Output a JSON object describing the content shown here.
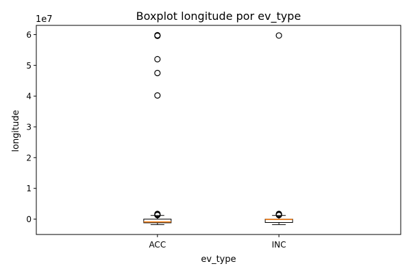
{
  "chart_data": {
    "type": "box",
    "title": "Boxplot longitude por ev_type",
    "xlabel": "ev_type",
    "ylabel": "longitude",
    "y_scale_label": "1e7",
    "categories": [
      "ACC",
      "INC"
    ],
    "ylim": [
      -5000000,
      63000000
    ],
    "yticks": [
      0,
      10000000,
      20000000,
      30000000,
      40000000,
      50000000,
      60000000
    ],
    "ytick_labels": [
      "0",
      "1",
      "2",
      "3",
      "4",
      "5",
      "6"
    ],
    "grid": false,
    "colors": {
      "median": "#ff7f0e",
      "box": "#000000",
      "flier": "#000000"
    },
    "boxes": [
      {
        "category": "ACC",
        "whisker_low": -1800000,
        "q1": -1200000,
        "median": -900000,
        "q3": 0,
        "whisker_high": 1200000,
        "fliers": [
          1300000,
          1500000,
          1700000,
          40200000,
          47500000,
          52000000,
          59600000,
          59800000
        ]
      },
      {
        "category": "INC",
        "whisker_low": -1800000,
        "q1": -1100000,
        "median": -100000,
        "q3": 0,
        "whisker_high": 1200000,
        "fliers": [
          1300000,
          1500000,
          1700000,
          59700000
        ]
      }
    ]
  }
}
